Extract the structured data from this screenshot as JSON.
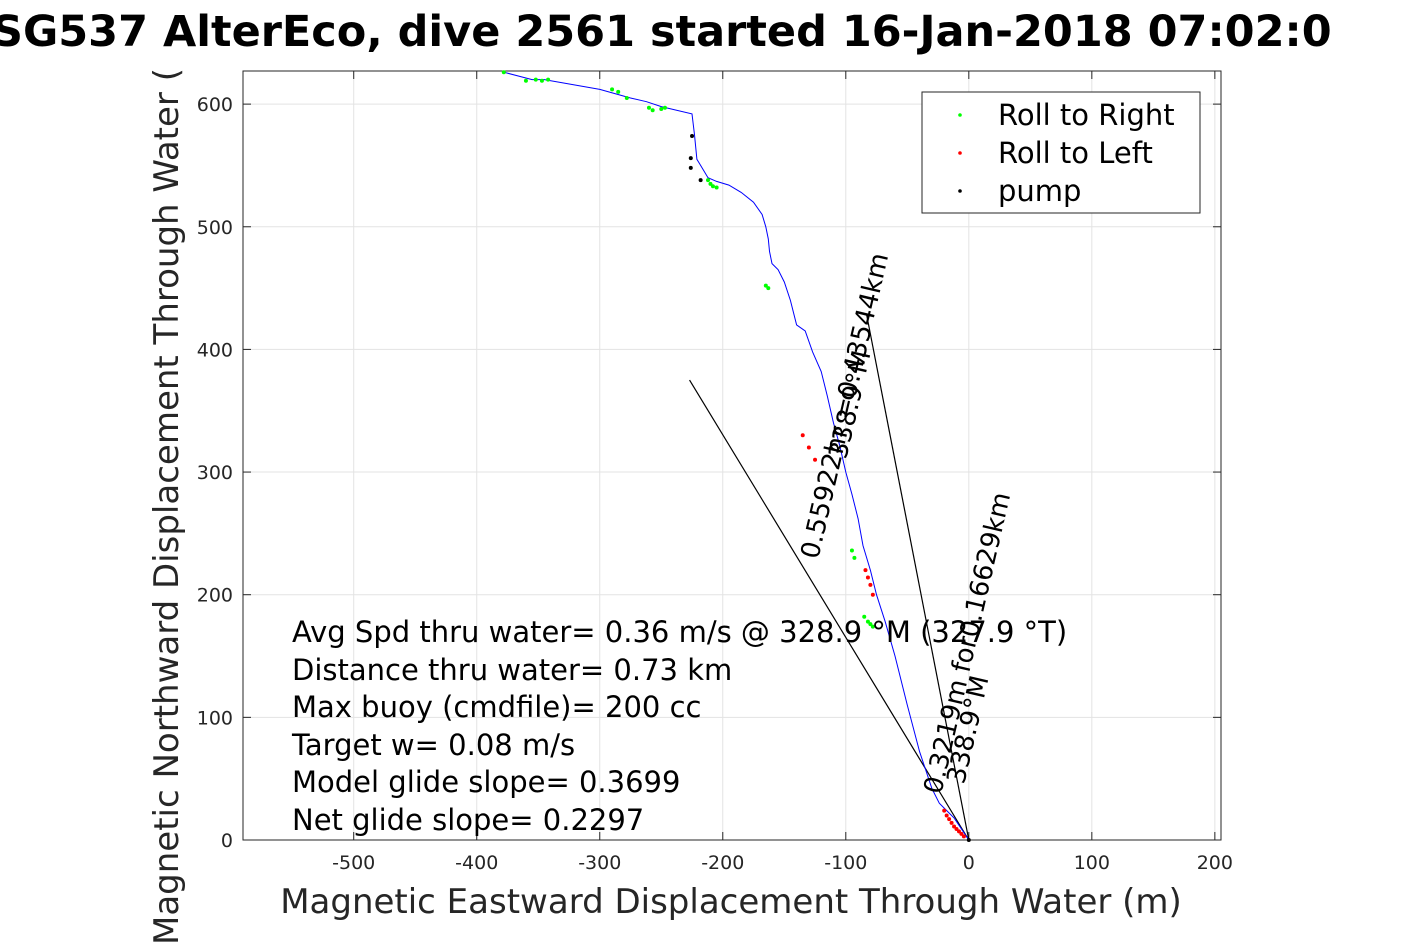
{
  "chart_data": {
    "type": "line",
    "title": "SG537 AlterEco, dive 2561 started 16-Jan-2018 07:02:0",
    "xlabel": "Magnetic Eastward Displacement Through Water (m)",
    "ylabel": "Magnetic Northward Displacement Through Water (",
    "xlim": [
      -590,
      205
    ],
    "ylim": [
      0,
      627
    ],
    "xticks": [
      -500,
      -400,
      -300,
      -200,
      -100,
      0,
      100,
      200
    ],
    "yticks": [
      0,
      100,
      200,
      300,
      400,
      500,
      600
    ],
    "grid": true,
    "legend_position": "top-right",
    "legend": [
      {
        "label": "Roll to Right",
        "color": "#00ff00"
      },
      {
        "label": "Roll to Left",
        "color": "#ff0000"
      },
      {
        "label": "pump",
        "color": "#000000"
      }
    ],
    "track": {
      "color": "#0000ff",
      "x": [
        0,
        -4,
        -8,
        -12,
        -16,
        -20,
        -24,
        -30,
        -40,
        -50,
        -60,
        -68,
        -75,
        -80,
        -86,
        -90,
        -95,
        -100,
        -105,
        -110,
        -115,
        -120,
        -127,
        -133,
        -140,
        -145,
        -150,
        -155,
        -160,
        -162,
        -163,
        -165,
        -168,
        -175,
        -185,
        -195,
        -205,
        -212,
        -218,
        -221,
        -223,
        -225,
        -250,
        -262,
        -275,
        -300,
        -345,
        -355,
        -378
      ],
      "y": [
        0,
        6,
        12,
        18,
        22,
        26,
        30,
        42,
        72,
        110,
        150,
        178,
        200,
        220,
        240,
        262,
        282,
        300,
        322,
        340,
        362,
        382,
        398,
        415,
        420,
        440,
        455,
        465,
        470,
        480,
        490,
        500,
        510,
        520,
        528,
        534,
        537,
        540,
        550,
        555,
        575,
        592,
        598,
        602,
        605,
        612,
        620,
        620,
        626
      ]
    },
    "roll_right": {
      "color": "#00ff00",
      "x": [
        -165,
        -163,
        -95,
        -93,
        -85,
        -82,
        -80,
        -78,
        -212,
        -210,
        -208,
        -205,
        -260,
        -257,
        -250,
        -247,
        -290,
        -285,
        -278,
        -352,
        -347,
        -342,
        -360,
        -378
      ],
      "y": [
        452,
        450,
        236,
        230,
        182,
        178,
        176,
        174,
        538,
        535,
        533,
        532,
        597,
        595,
        596,
        597,
        612,
        610,
        605,
        620,
        619,
        620,
        619,
        626
      ]
    },
    "roll_left": {
      "color": "#ff0000",
      "x": [
        -20,
        -18,
        -16,
        -14,
        -12,
        -10,
        -8,
        -6,
        -4,
        -84,
        -82,
        -80,
        -78,
        -135,
        -130,
        -125
      ],
      "y": [
        24,
        20,
        17,
        14,
        11,
        9,
        7,
        5,
        3,
        220,
        214,
        208,
        200,
        330,
        320,
        310
      ]
    },
    "pump": {
      "color": "#000000",
      "x": [
        0,
        -225,
        -226,
        -226,
        -218
      ],
      "y": [
        0,
        574,
        556,
        548,
        538
      ]
    },
    "direction_lines": [
      {
        "label": "0.43544km",
        "color": "#000000",
        "x": [
          0,
          -227
        ],
        "y": [
          0,
          375
        ]
      },
      {
        "label": "0.16629km",
        "color": "#000000",
        "x": [
          0,
          -83
        ],
        "y": [
          0,
          428
        ]
      }
    ],
    "slanted_labels": [
      "0.55922hr =0.43544km",
      "338.9°M",
      "0.3219m for0.16629km",
      "338.9°M"
    ],
    "annotations": [
      "Avg Spd thru water=  0.36 m/s @ 328.9 °M (327.9 °T)",
      "Distance thru water=  0.73 km",
      "Max buoy (cmdfile)= 200 cc",
      "Target w= 0.08 m/s",
      "Model glide slope= 0.3699",
      "Net glide slope= 0.2297"
    ]
  }
}
